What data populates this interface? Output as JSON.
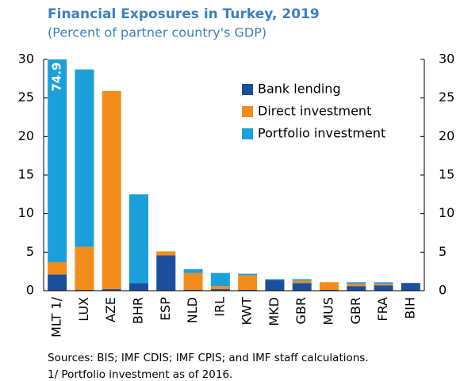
{
  "chart_data": {
    "type": "stacked_bar",
    "title": "Financial Exposures in Turkey, 2019",
    "subtitle": "(Percent of partner country's GDP)",
    "categories": [
      "MLT 1/",
      "LUX",
      "AZE",
      "BHR",
      "ESP",
      "NLD",
      "IRL",
      "KWT",
      "MKD",
      "GBR",
      "MUS",
      "GBR",
      "FRA",
      "BIH"
    ],
    "series": [
      {
        "name": "Bank lending",
        "color": "#1b4f9c",
        "values": [
          2.1,
          0.1,
          0.2,
          1.0,
          4.6,
          0.1,
          0.2,
          0.1,
          1.4,
          1.0,
          0.1,
          0.6,
          0.7,
          1.0
        ]
      },
      {
        "name": "Direct investment",
        "color": "#f28c1a",
        "values": [
          1.6,
          5.6,
          25.7,
          0,
          0.5,
          2.2,
          0.4,
          1.9,
          0,
          0.3,
          1.0,
          0.3,
          0.2,
          0
        ]
      },
      {
        "name": "Portfolio investment",
        "color": "#1ca0dc",
        "values": [
          74.9,
          23.0,
          0,
          11.5,
          0,
          0.5,
          1.7,
          0.2,
          0.1,
          0.2,
          0,
          0.2,
          0.2,
          0
        ],
        "value_labels": [
          "74.9",
          null,
          null,
          null,
          null,
          null,
          null,
          null,
          null,
          null,
          null,
          null,
          null,
          null
        ]
      }
    ],
    "ylim": [
      0,
      30
    ],
    "yticks": [
      0,
      5,
      10,
      15,
      20,
      25,
      30
    ],
    "y2lim": [
      0,
      30
    ],
    "y2ticks": [
      0,
      5,
      10,
      15,
      20,
      25,
      30
    ],
    "legend": "upper right",
    "notes": [
      "Sources: BIS; IMF CDIS; IMF CPIS; and IMF staff calculations.",
      "1/ Portfolio investment as of 2016."
    ]
  }
}
